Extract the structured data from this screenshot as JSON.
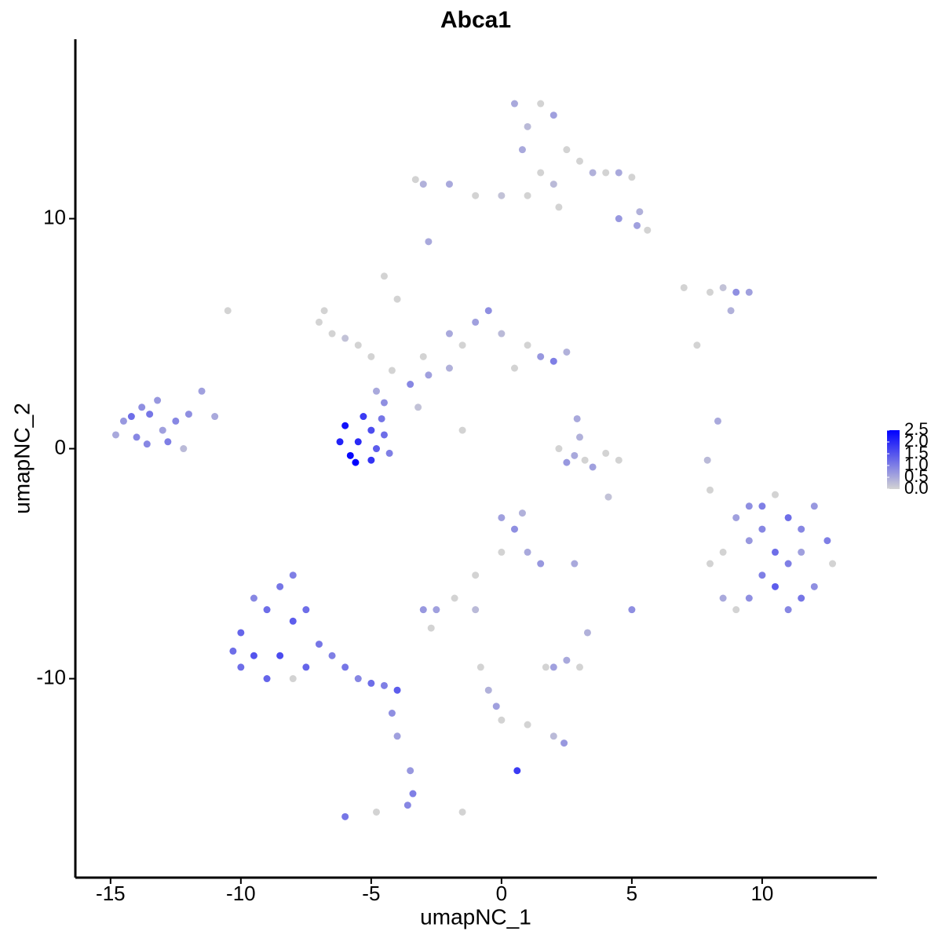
{
  "chart_data": {
    "type": "scatter",
    "title": "Abca1",
    "x_label": "umapNC_1",
    "y_label": "umapNC_2",
    "xlim": [
      -16.35,
      14.4
    ],
    "ylim": [
      -18.65,
      17.8
    ],
    "xticks": [
      -15,
      -10,
      -5,
      0,
      5,
      10
    ],
    "yticks": [
      -10,
      0,
      10
    ],
    "color_low": "#d3d3d3",
    "color_high": "#0000ff",
    "color_lim": [
      0,
      2.5
    ],
    "color_ticks": [
      {
        "value": 0,
        "label": "0.0"
      },
      0.5,
      {
        "value": 1,
        "label": "1.0"
      },
      1.5,
      {
        "value": 2,
        "label": "2.0"
      },
      2.5
    ],
    "x": [
      -14.5,
      -14,
      -13.5,
      -13,
      -12.5,
      -13.8,
      -14.8,
      -12.8,
      -13.2,
      -12,
      -11.5,
      -11,
      -12.2,
      -13.6,
      -14.2,
      -6,
      -5.5,
      -5,
      -5.8,
      -4.8,
      -4.5,
      -6.2,
      -5.3,
      -5,
      -4.3,
      -5.6,
      -4.6,
      -4.5,
      -3.5,
      -2.8,
      -2,
      -4.8,
      -3.2,
      -1.5,
      -4.2,
      -7,
      -6.5,
      -6,
      -5.5,
      -5,
      -4,
      -4.5,
      -3,
      -1.5,
      -1,
      -0.5,
      0,
      1,
      1.5,
      2,
      2.5,
      0.5,
      -6.8,
      -10.5,
      -2,
      0.5,
      1,
      1.5,
      2,
      2.5,
      3,
      3.5,
      4,
      4.5,
      5,
      5.3,
      5.6,
      4.5,
      1.5,
      2,
      1,
      0,
      -1,
      -2,
      -3,
      -3.3,
      0.8,
      5.2,
      -2.8,
      2.2,
      7,
      8,
      8.5,
      9,
      9.5,
      8.8,
      7.5,
      8.3,
      7.9,
      8,
      2.2,
      2.8,
      3.2,
      3.5,
      3,
      2.5,
      4,
      4.5,
      2.9,
      4.1,
      8.5,
      9,
      9.5,
      10,
      10.5,
      11,
      11.5,
      12,
      12.5,
      12.7,
      12,
      11.5,
      11,
      10.5,
      10,
      9.5,
      9,
      8.5,
      10.5,
      11,
      9.5,
      10,
      11.5,
      8,
      -10,
      -9.5,
      -9,
      -8.5,
      -8,
      -8.5,
      -9,
      -10,
      -7.5,
      -7,
      -8,
      -9.5,
      -10.3,
      -6.5,
      -6,
      -5.5,
      -5,
      -4.5,
      -4,
      -7.5,
      -8,
      -4.2,
      -4,
      -3.5,
      -3.4,
      -3.6,
      -4.8,
      -6,
      0,
      0.5,
      1,
      0,
      0.8,
      1.5,
      -1,
      -1.8,
      -2.5,
      -3,
      -2.7,
      -1,
      2.8,
      2,
      2.5,
      3,
      3.3,
      1.7,
      5,
      -0.8,
      -0.5,
      -0.2,
      0,
      1,
      2,
      2.4,
      0.6,
      -1.5
    ],
    "y": [
      1.2,
      0.5,
      1.5,
      0.8,
      1.2,
      1.8,
      0.6,
      0.3,
      2.1,
      1.5,
      2.5,
      1.4,
      0,
      0.2,
      1.4,
      1,
      0.3,
      0.8,
      -0.3,
      0,
      0.6,
      0.3,
      1.4,
      -0.5,
      -0.2,
      -0.6,
      1.3,
      2,
      2.8,
      3.2,
      3.5,
      2.5,
      1.8,
      0.8,
      3.4,
      5.5,
      5,
      4.8,
      4.5,
      4,
      6.5,
      7.5,
      4,
      4.5,
      5.5,
      6,
      5,
      4.5,
      4,
      3.8,
      4.2,
      3.5,
      6,
      6,
      5,
      15,
      14,
      15,
      14.5,
      13,
      12.5,
      12,
      12,
      12,
      11.8,
      10.3,
      9.5,
      10,
      12,
      11.5,
      11,
      11,
      11,
      11.5,
      11.5,
      11.7,
      13,
      9.7,
      9,
      10.5,
      7,
      6.8,
      7,
      6.8,
      6.8,
      6,
      4.5,
      1.2,
      -0.5,
      -1.8,
      0,
      -0.3,
      -0.5,
      -0.8,
      0.5,
      -0.6,
      -0.2,
      -0.5,
      1.3,
      -2.1,
      -4.5,
      -3,
      -2.5,
      -2.5,
      -2,
      -3,
      -3.5,
      -2.5,
      -4,
      -5,
      -6,
      -6.5,
      -7,
      -6,
      -5.5,
      -6.5,
      -7,
      -6.5,
      -4.5,
      -5,
      -4,
      -3.5,
      -4.5,
      -5,
      -8,
      -9,
      -7,
      -6,
      -7.5,
      -9,
      -10,
      -9.5,
      -9.5,
      -8.5,
      -5.5,
      -6.5,
      -8.8,
      -9,
      -9.5,
      -10,
      -10.2,
      -10.3,
      -10.5,
      -7,
      -10,
      -11.5,
      -12.5,
      -14,
      -15,
      -15.5,
      -15.8,
      -16,
      -3,
      -3.5,
      -4.5,
      -4.5,
      -2.8,
      -5,
      -5.5,
      -6.5,
      -7,
      -7,
      -7.8,
      -7,
      -5,
      -9.5,
      -9.2,
      -9.5,
      -8,
      -9.5,
      -7,
      -9.5,
      -10.5,
      -11.2,
      -11.8,
      -12,
      -12.5,
      -12.8,
      -14,
      -15.8
    ],
    "values": [
      0.7,
      0.9,
      1.1,
      0.6,
      0.9,
      0.8,
      0.5,
      1,
      0.7,
      0.8,
      0.6,
      0.5,
      0.3,
      0.9,
      1.2,
      2.3,
      2,
      1.6,
      2.4,
      1.4,
      1.2,
      2.1,
      1.8,
      1.9,
      1,
      2.5,
      1.1,
      0.8,
      0.9,
      0.6,
      0.4,
      0.5,
      0.2,
      0,
      0,
      0,
      0,
      0.2,
      0,
      0,
      0,
      0,
      0,
      0,
      0.6,
      0.8,
      0.3,
      0,
      0.7,
      1,
      0.4,
      0,
      0,
      0,
      0.5,
      0.5,
      0.3,
      0,
      0.6,
      0,
      0,
      0.4,
      0,
      0.5,
      0,
      0.4,
      0,
      0.7,
      0,
      0.3,
      0,
      0.2,
      0,
      0.5,
      0.4,
      0,
      0.5,
      0.6,
      0.5,
      0,
      0,
      0,
      0.2,
      0.8,
      0.6,
      0.4,
      0,
      0.5,
      0.3,
      0,
      0,
      0.5,
      0,
      0.6,
      0.4,
      0.7,
      0,
      0,
      0.5,
      0.2,
      0,
      0.6,
      0.8,
      1,
      0,
      1.2,
      0.9,
      0.7,
      1,
      0,
      0.8,
      1.1,
      0.9,
      1.4,
      1,
      0.8,
      0,
      0.5,
      1.2,
      1,
      0.7,
      0.9,
      0.6,
      0,
      1.3,
      1.5,
      1.2,
      1.1,
      1.4,
      1.6,
      1.3,
      1.2,
      1.3,
      1.1,
      1,
      0.9,
      1.2,
      1,
      1.1,
      0.9,
      1.2,
      1,
      1.4,
      1.2,
      0,
      0.8,
      0.6,
      0.7,
      1,
      0.9,
      0,
      1.1,
      0.6,
      0.8,
      0.5,
      0,
      0.4,
      0.7,
      0,
      0,
      0.6,
      0.7,
      0,
      0.3,
      0.5,
      0.6,
      0.5,
      0,
      0.4,
      0,
      0.8,
      0,
      0.4,
      0.6,
      0,
      0,
      0.3,
      0.7,
      1.8,
      0
    ]
  }
}
